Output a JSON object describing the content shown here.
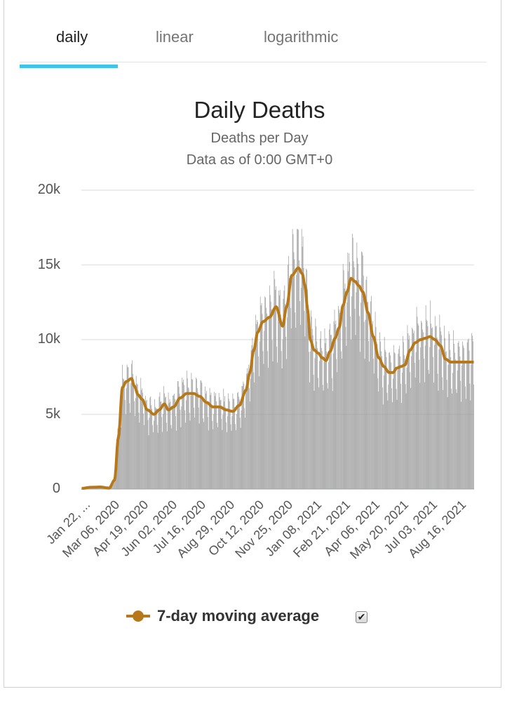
{
  "tabs": [
    {
      "label": "daily",
      "active": true
    },
    {
      "label": "linear",
      "active": false
    },
    {
      "label": "logarithmic",
      "active": false
    }
  ],
  "colors": {
    "tab_indicator": "#3ec6ea",
    "bars": "#9e9e9e",
    "moving_average": "#b7781a",
    "grid": "#e6e6e6"
  },
  "legend": {
    "label": "7-day moving average",
    "checkbox_checked": true,
    "checkbox_glyph": "✔"
  },
  "chart_data": {
    "type": "bar",
    "title": "Daily Deaths",
    "subtitle": "Deaths per Day",
    "note": "Data as of 0:00 GMT+0",
    "xlabel": "",
    "ylabel": "",
    "ylim": [
      0,
      20000
    ],
    "yticks": [
      0,
      5000,
      10000,
      15000,
      20000
    ],
    "ytick_labels": [
      "0",
      "5k",
      "10k",
      "15k",
      "20k"
    ],
    "grid": true,
    "start_date": "Jan 22, 2020",
    "num_days": 598,
    "xtick_interval_days": 44,
    "xtick_labels": [
      "Jan 22, ...",
      "Mar 06, 2020",
      "Apr 19, 2020",
      "Jun 02, 2020",
      "Jul 16, 2020",
      "Aug 29, 2020",
      "Oct 12, 2020",
      "Nov 25, 2020",
      "Jan 08, 2021",
      "Feb 21, 2021",
      "Apr 06, 2021",
      "May 20, 2021",
      "Jul 03, 2021",
      "Aug 16, 2021"
    ],
    "legend_position": "bottom",
    "series": [
      {
        "name": "7-day moving average",
        "type": "line",
        "anchor_days": [
          0,
          14,
          28,
          42,
          50,
          56,
          62,
          68,
          76,
          80,
          86,
          92,
          100,
          110,
          118,
          126,
          132,
          140,
          150,
          160,
          170,
          180,
          190,
          200,
          210,
          220,
          230,
          240,
          250,
          256,
          262,
          268,
          276,
          286,
          296,
          306,
          312,
          320,
          330,
          336,
          340,
          344,
          348,
          354,
          360,
          366,
          372,
          378,
          386,
          392,
          398,
          404,
          410,
          416,
          422,
          428,
          436,
          444,
          452,
          460,
          468,
          474,
          480,
          486,
          492,
          500,
          508,
          516,
          524,
          530,
          538,
          546,
          554,
          562,
          570,
          578,
          584,
          590,
          594,
          597
        ],
        "values": [
          50,
          120,
          140,
          70,
          600,
          3500,
          6800,
          7200,
          7400,
          6900,
          6300,
          6000,
          5300,
          5000,
          5300,
          5700,
          5300,
          5500,
          6100,
          6400,
          6400,
          6200,
          5800,
          5500,
          5500,
          5300,
          5200,
          5600,
          6600,
          7800,
          9300,
          10500,
          11200,
          11500,
          12200,
          10900,
          12200,
          14300,
          14800,
          14400,
          13600,
          12000,
          10000,
          9300,
          9100,
          8800,
          8600,
          9200,
          10100,
          10800,
          12300,
          13200,
          14100,
          13900,
          13600,
          13200,
          11800,
          10200,
          8800,
          8200,
          7800,
          7800,
          8100,
          8200,
          8300,
          9300,
          9800,
          10000,
          10100,
          10200,
          10000,
          9600,
          8700,
          8500,
          8500,
          8500,
          8500,
          8500,
          8500,
          8500
        ]
      },
      {
        "name": "Daily deaths",
        "type": "bar",
        "weekday_factors": [
          0.72,
          0.95,
          1.18,
          1.15,
          1.12,
          1.05,
          0.83
        ],
        "peak_daily": 17400,
        "last_day_value": 7000
      }
    ]
  }
}
